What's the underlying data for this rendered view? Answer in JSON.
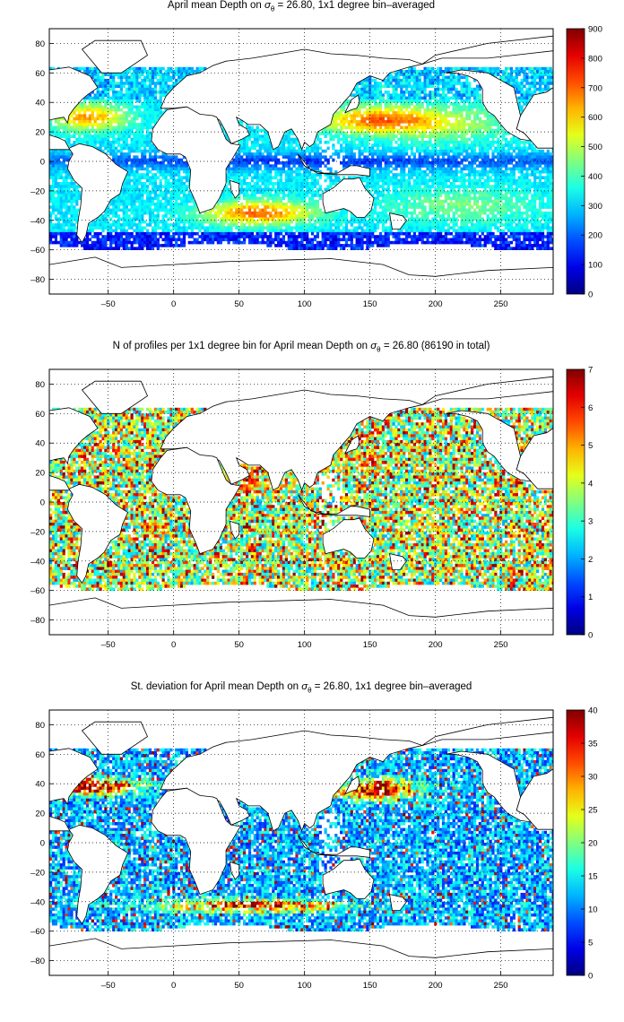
{
  "chart_data": [
    {
      "type": "heatmap",
      "title_pre": "April mean Depth on ",
      "title_sigma": "σ",
      "title_sub": "θ",
      "title_post": " = 26.80, 1x1 degree bin–averaged",
      "xlim": [
        -95,
        290
      ],
      "ylim": [
        -90,
        90
      ],
      "xticks": [
        -50,
        0,
        50,
        100,
        150,
        200,
        250
      ],
      "yticks": [
        80,
        60,
        40,
        20,
        0,
        -20,
        -40,
        -60,
        -80
      ],
      "colorbar": {
        "min": 0,
        "max": 900,
        "ticks": [
          0,
          100,
          200,
          300,
          400,
          500,
          600,
          700,
          800,
          900
        ]
      },
      "grid": true,
      "field": "depth"
    },
    {
      "type": "heatmap",
      "title_pre": "N of profiles per 1x1 degree bin for April mean Depth on ",
      "title_sigma": "σ",
      "title_sub": "θ",
      "title_post": " = 26.80 (86190 in total)",
      "xlim": [
        -95,
        290
      ],
      "ylim": [
        -90,
        90
      ],
      "xticks": [
        -50,
        0,
        50,
        100,
        150,
        200,
        250
      ],
      "yticks": [
        80,
        60,
        40,
        20,
        0,
        -20,
        -40,
        -60,
        -80
      ],
      "colorbar": {
        "min": 0,
        "max": 7,
        "ticks": [
          0,
          1,
          2,
          3,
          4,
          5,
          6,
          7
        ]
      },
      "grid": true,
      "field": "count"
    },
    {
      "type": "heatmap",
      "title_pre": "St. deviation for April mean Depth on ",
      "title_sigma": "σ",
      "title_sub": "θ",
      "title_post": " = 26.80, 1x1 degree bin–averaged",
      "xlim": [
        -95,
        290
      ],
      "ylim": [
        -90,
        90
      ],
      "xticks": [
        -50,
        0,
        50,
        100,
        150,
        200,
        250
      ],
      "yticks": [
        80,
        60,
        40,
        20,
        0,
        -20,
        -40,
        -60,
        -80
      ],
      "colorbar": {
        "min": 0,
        "max": 40,
        "ticks": [
          0,
          5,
          10,
          15,
          20,
          25,
          30,
          35,
          40
        ]
      },
      "grid": true,
      "field": "std"
    }
  ]
}
